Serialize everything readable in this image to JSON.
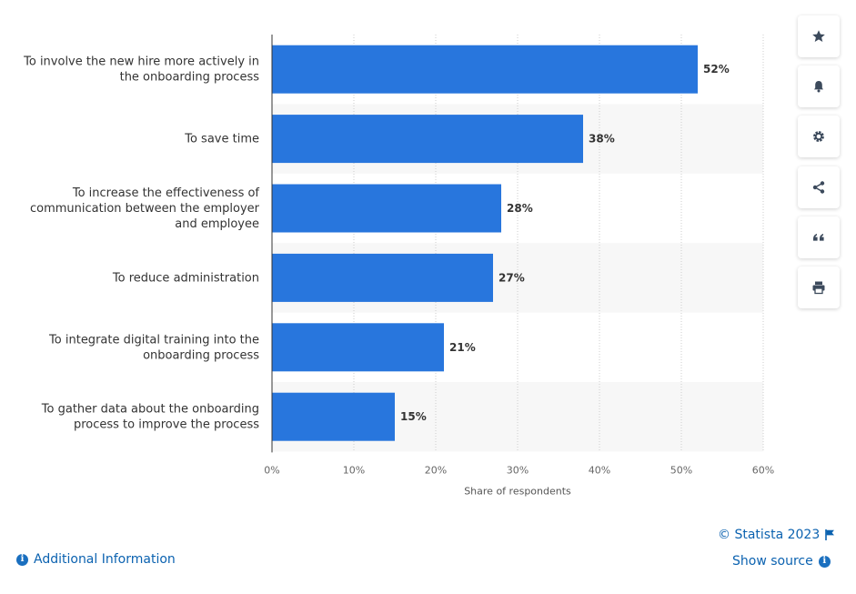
{
  "chart_data": {
    "type": "bar",
    "orientation": "horizontal",
    "categories": [
      [
        "To involve the new hire more actively in",
        "the onboarding process"
      ],
      [
        "To save time"
      ],
      [
        "To increase the effectiveness of",
        "communication between the employer",
        "and employee"
      ],
      [
        "To reduce administration"
      ],
      [
        "To integrate digital training into the",
        "onboarding process"
      ],
      [
        "To gather data about the onboarding",
        "process to improve the process"
      ]
    ],
    "values": [
      52,
      38,
      28,
      27,
      21,
      15
    ],
    "value_labels": [
      "52%",
      "38%",
      "28%",
      "27%",
      "21%",
      "15%"
    ],
    "xlim": [
      0,
      60
    ],
    "xticks": [
      0,
      10,
      20,
      30,
      40,
      50,
      60
    ],
    "xtick_labels": [
      "0%",
      "10%",
      "20%",
      "30%",
      "40%",
      "50%",
      "60%"
    ],
    "xlabel": "Share of respondents",
    "grid": true,
    "colors": {
      "bar": "#2876dd",
      "band": "#f7f7f7",
      "grid": "#cccccc"
    }
  },
  "toolbar": {
    "buttons": [
      {
        "name": "favorite-button",
        "icon": "star-icon"
      },
      {
        "name": "notification-button",
        "icon": "bell-icon"
      },
      {
        "name": "settings-button",
        "icon": "gear-icon"
      },
      {
        "name": "share-button",
        "icon": "share-icon"
      },
      {
        "name": "cite-button",
        "icon": "quote-icon"
      },
      {
        "name": "print-button",
        "icon": "printer-icon"
      }
    ]
  },
  "footer": {
    "copyright": "© Statista 2023",
    "show_source": "Show source",
    "additional_info": "Additional Information"
  }
}
